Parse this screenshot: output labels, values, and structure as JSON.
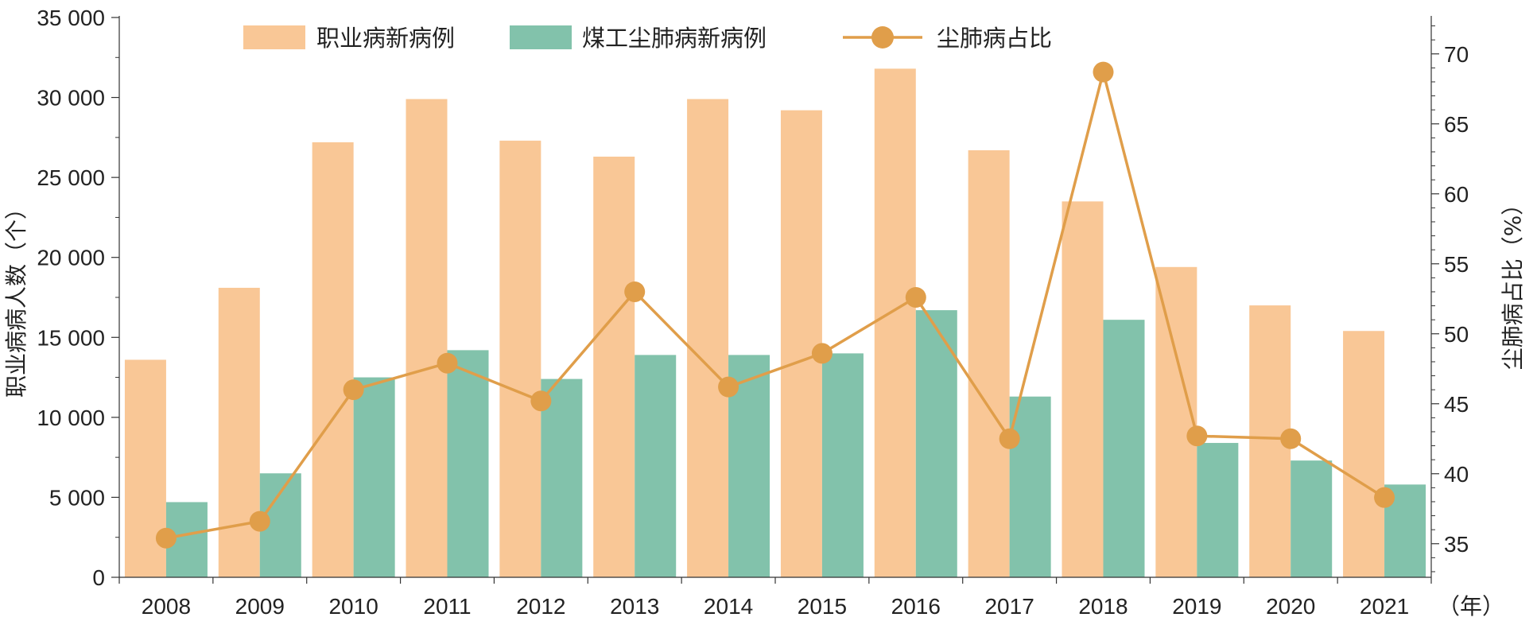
{
  "chart_data": {
    "type": "bar",
    "categories": [
      "2008",
      "2009",
      "2010",
      "2011",
      "2012",
      "2013",
      "2014",
      "2015",
      "2016",
      "2017",
      "2018",
      "2019",
      "2020",
      "2021"
    ],
    "x_unit": "（年）",
    "series": [
      {
        "name": "职业病新病例",
        "kind": "bar",
        "axis": "left",
        "color": "#F9C796",
        "values": [
          13600,
          18100,
          27200,
          29900,
          27300,
          26300,
          29900,
          29200,
          31800,
          26700,
          23500,
          19400,
          17000,
          15400
        ]
      },
      {
        "name": "煤工尘肺病新病例",
        "kind": "bar",
        "axis": "left",
        "color": "#82C2AB",
        "values": [
          4700,
          6500,
          12500,
          14200,
          12400,
          13900,
          13900,
          14000,
          16700,
          11300,
          16100,
          8400,
          7300,
          5800
        ]
      },
      {
        "name": "尘肺病占比",
        "kind": "line",
        "axis": "right",
        "color": "#E09E4A",
        "values": [
          35.4,
          36.6,
          46.0,
          47.9,
          45.2,
          53.0,
          46.2,
          48.6,
          52.6,
          42.5,
          68.7,
          42.7,
          42.5,
          38.3
        ]
      }
    ],
    "ylabel": "职业病病人数（个）",
    "ylabel_right": "尘肺病占比（%）",
    "ylim": [
      0,
      35000
    ],
    "yticks": [
      "0",
      "5 000",
      "10 000",
      "15 000",
      "20 000",
      "25 000",
      "30 000",
      "35 000"
    ],
    "ylim_right": [
      32.6,
      72.6
    ],
    "yticks_right": [
      "35",
      "40",
      "45",
      "50",
      "55",
      "60",
      "65",
      "70"
    ],
    "legend_position": "top-center",
    "grid": false
  }
}
